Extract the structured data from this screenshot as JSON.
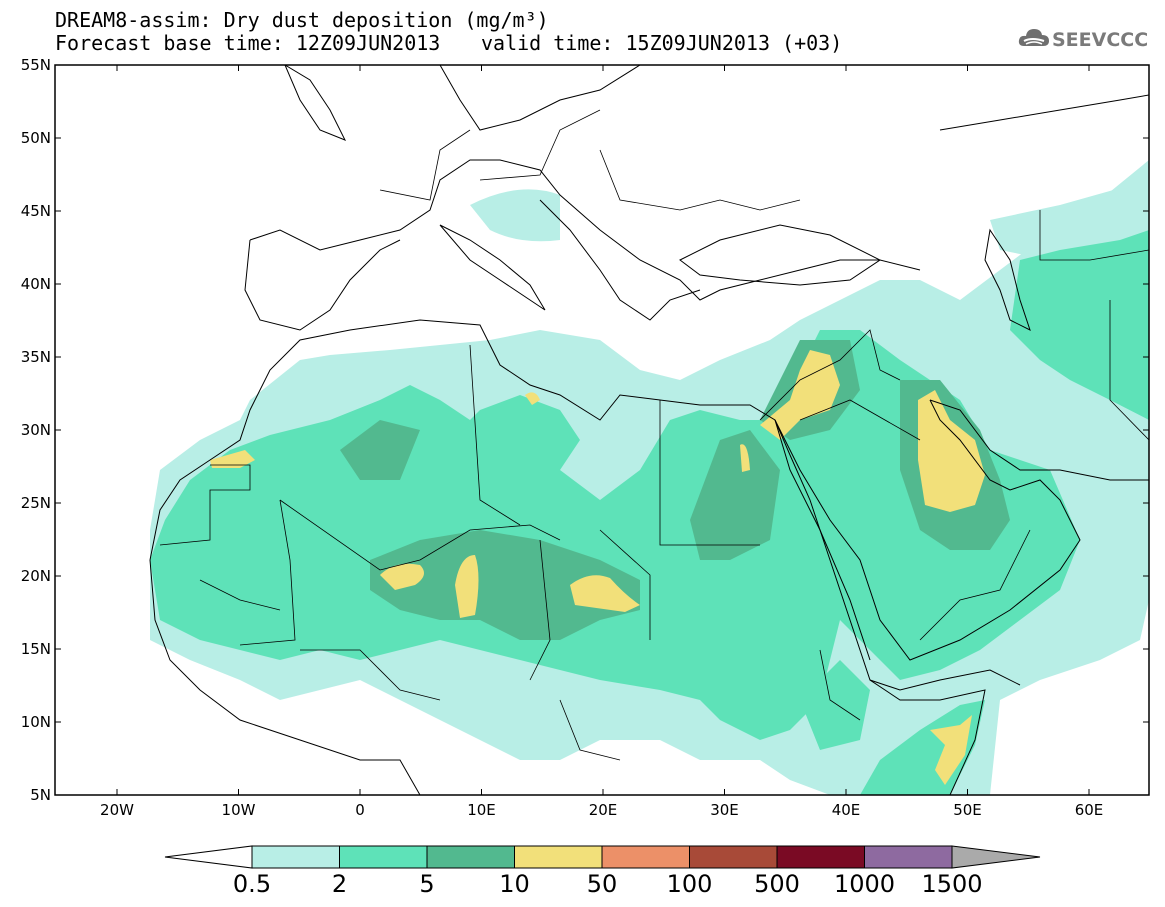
{
  "header": {
    "title_line1": "DREAM8-assim: Dry dust deposition (mg/m³)",
    "title_line2": "Forecast base time: 12Z09JUN2013",
    "valid_time": "valid time: 15Z09JUN2013 (+03)",
    "logo_text": "SEEVCCC"
  },
  "map": {
    "lat_labels": [
      "55N",
      "50N",
      "45N",
      "40N",
      "35N",
      "30N",
      "25N",
      "20N",
      "15N",
      "10N",
      "5N"
    ],
    "lon_labels": [
      "20W",
      "10W",
      "0",
      "10E",
      "20E",
      "30E",
      "40E",
      "50E",
      "60E"
    ],
    "colors": {
      "land_bg": "#ffffff",
      "border": "#000000"
    }
  },
  "legend": {
    "labels": [
      "0.5",
      "2",
      "5",
      "10",
      "50",
      "100",
      "500",
      "1000",
      "1500"
    ],
    "colors": [
      "#ffffff",
      "#b8eee6",
      "#5ee2b8",
      "#52b98f",
      "#f2e07a",
      "#ec9068",
      "#a84a38",
      "#7a0a24",
      "#8e6aa0",
      "#aaaaaa"
    ]
  }
}
